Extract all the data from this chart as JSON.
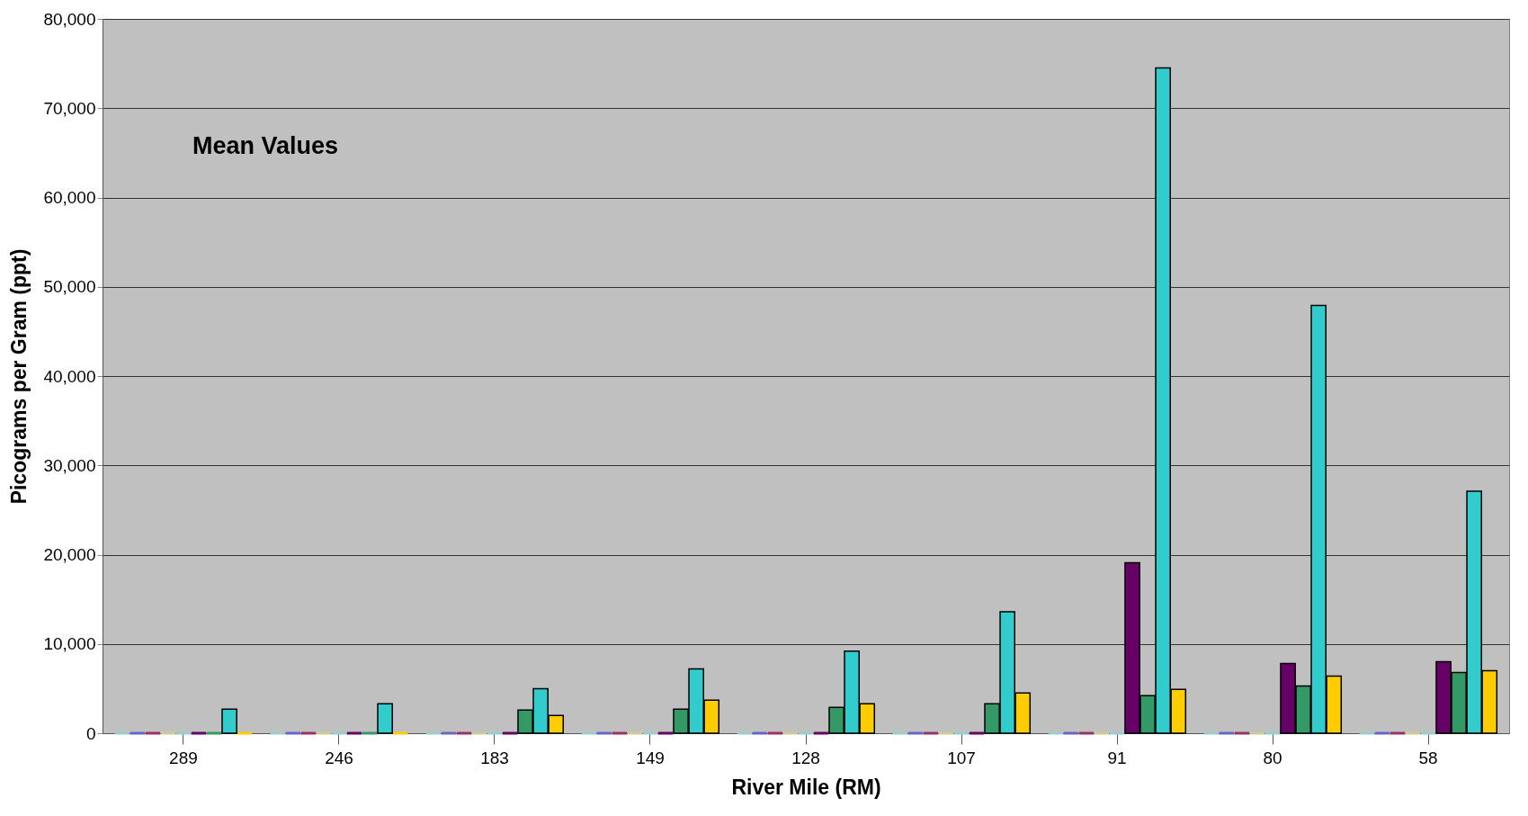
{
  "chart_data": {
    "type": "bar",
    "xlabel": "River Mile (RM)",
    "ylabel": "Picograms per Gram (ppt)",
    "annotations": [
      "Mean Values"
    ],
    "categories": [
      "289",
      "246",
      "183",
      "149",
      "128",
      "107",
      "91",
      "80",
      "58"
    ],
    "ylim": [
      0,
      80000
    ],
    "yticks": [
      {
        "value": 0,
        "label": "0"
      },
      {
        "value": 10000,
        "label": "10,000"
      },
      {
        "value": 20000,
        "label": "20,000"
      },
      {
        "value": 30000,
        "label": "30,000"
      },
      {
        "value": 40000,
        "label": "40,000"
      },
      {
        "value": 50000,
        "label": "50,000"
      },
      {
        "value": 60000,
        "label": "60,000"
      },
      {
        "value": 70000,
        "label": "70,000"
      },
      {
        "value": 80000,
        "label": "80,000"
      }
    ],
    "grid": "y",
    "legend": false,
    "series": [
      {
        "color": "#99cccc",
        "values": [
          0,
          0,
          0,
          0,
          0,
          0,
          0,
          0,
          0
        ]
      },
      {
        "color": "#6666cc",
        "values": [
          0,
          0,
          0,
          0,
          0,
          0,
          0,
          0,
          0
        ]
      },
      {
        "color": "#993366",
        "values": [
          0,
          0,
          0,
          0,
          0,
          0,
          0,
          0,
          0
        ]
      },
      {
        "color": "#cccc99",
        "values": [
          0,
          0,
          0,
          0,
          0,
          0,
          0,
          0,
          0
        ]
      },
      {
        "color": "#99cccc",
        "values": [
          0,
          0,
          0,
          0,
          0,
          0,
          0,
          0,
          0
        ]
      },
      {
        "color": "#660066",
        "values": [
          0,
          0,
          0,
          0,
          0,
          0,
          19100,
          7800,
          8000
        ]
      },
      {
        "color": "#339966",
        "values": [
          0,
          0,
          2600,
          2700,
          2900,
          3300,
          4200,
          5300,
          6800
        ]
      },
      {
        "color": "#33cccc",
        "values": [
          2700,
          3300,
          5000,
          7200,
          9200,
          13600,
          74500,
          47900,
          27100
        ]
      },
      {
        "color": "#ffcc00",
        "values": [
          0,
          0,
          2000,
          3700,
          3300,
          4500,
          4900,
          6400,
          7000
        ]
      }
    ]
  }
}
